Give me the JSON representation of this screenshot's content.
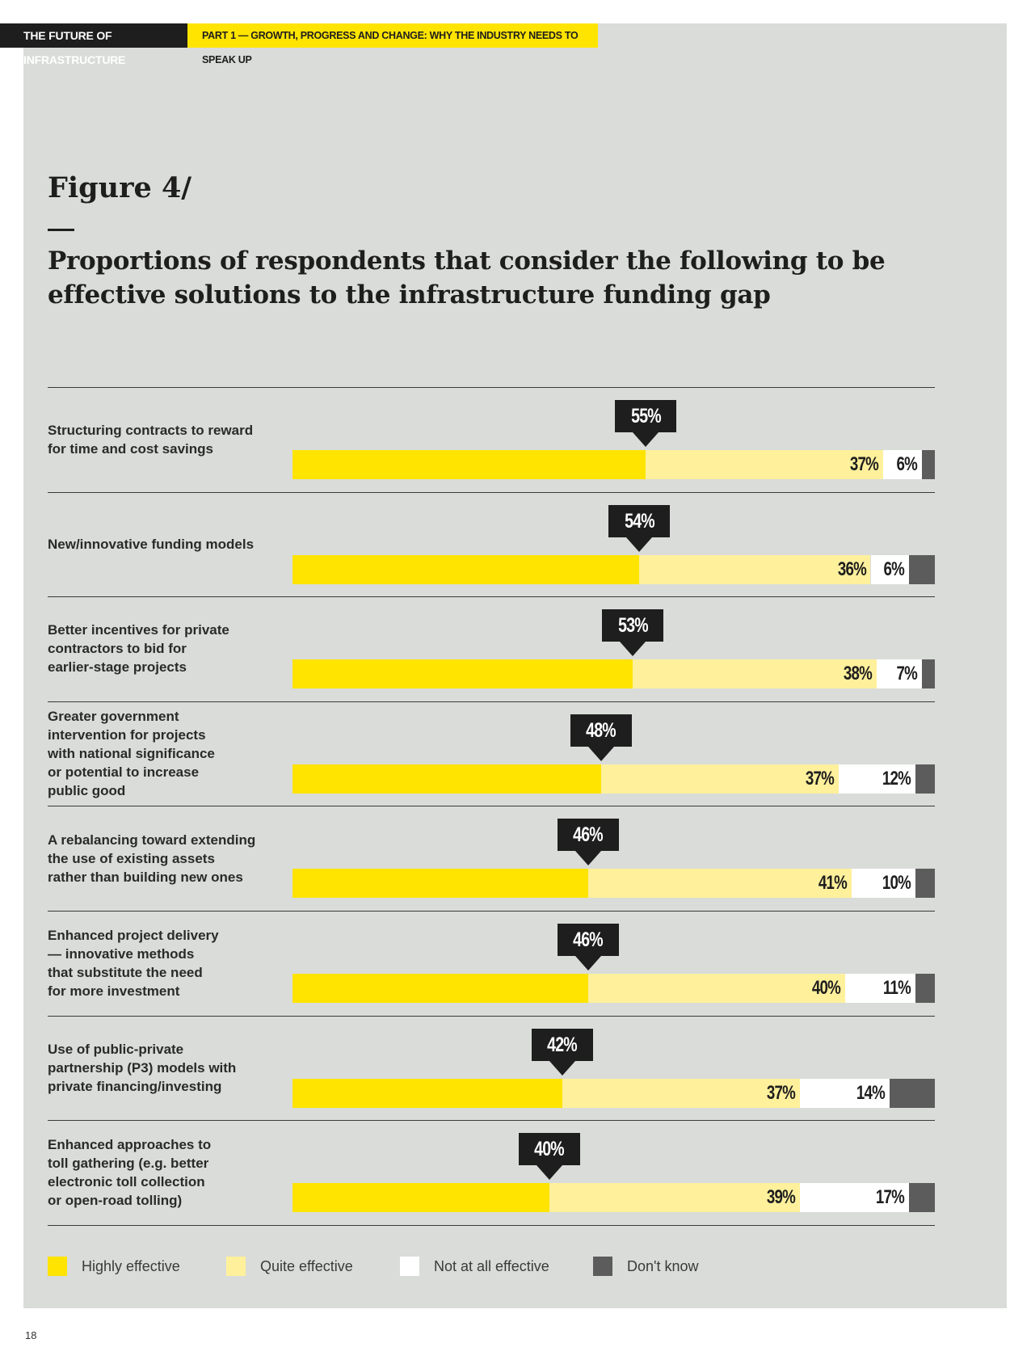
{
  "header": {
    "left": "THE FUTURE OF INFRASTRUCTURE",
    "right": "PART 1 — GROWTH, PROGRESS AND CHANGE: WHY THE INDUSTRY NEEDS TO SPEAK UP"
  },
  "figure": {
    "number": "Figure 4/",
    "title": "Proportions of respondents that consider the following to be effective solutions to the infrastructure funding gap"
  },
  "colors": {
    "highly": "#ffe400",
    "quite": "#fff09c",
    "not": "#ffffff",
    "dont_know": "#5c5c5c"
  },
  "chart_data": {
    "type": "bar",
    "stacked": true,
    "orientation": "horizontal",
    "title": "Proportions of respondents that consider the following to be effective solutions to the infrastructure funding gap",
    "categories": [
      "Structuring contracts to reward for time and cost savings",
      "New/innovative funding models",
      "Better incentives for private contractors to bid for earlier-stage projects",
      "Greater government intervention for projects with national significance or potential to increase public good",
      "A rebalancing toward extending the use of existing assets rather than building new ones",
      "Enhanced project delivery — innovative methods that substitute the need for more investment",
      "Use of public-private partnership (P3) models with private financing/investing",
      "Enhanced approaches to toll gathering (e.g. better electronic toll collection or open-road tolling)"
    ],
    "series": [
      {
        "name": "Highly effective",
        "values": [
          55,
          54,
          53,
          48,
          46,
          46,
          42,
          40
        ]
      },
      {
        "name": "Quite effective",
        "values": [
          37,
          36,
          38,
          37,
          41,
          40,
          37,
          39
        ]
      },
      {
        "name": "Not at all effective",
        "values": [
          6,
          6,
          7,
          12,
          10,
          11,
          14,
          17
        ]
      },
      {
        "name": "Don't know",
        "values": [
          2,
          4,
          2,
          3,
          3,
          3,
          7,
          4
        ]
      }
    ],
    "labels": {
      "highly": [
        "55%",
        "54%",
        "53%",
        "48%",
        "46%",
        "46%",
        "42%",
        "40%"
      ],
      "quite": [
        "37%",
        "36%",
        "38%",
        "37%",
        "41%",
        "40%",
        "37%",
        "39%"
      ],
      "not": [
        "6%",
        "6%",
        "7%",
        "12%",
        "10%",
        "11%",
        "14%",
        "17%"
      ]
    },
    "xlim": [
      0,
      100
    ],
    "legend": [
      "Highly effective",
      "Quite effective",
      "Not at all effective",
      "Don't know"
    ],
    "legend_position": "bottom"
  },
  "rows": [
    {
      "label": [
        "Structuring contracts to reward",
        "for time and cost savings"
      ]
    },
    {
      "label": [
        "New/innovative funding models"
      ]
    },
    {
      "label": [
        "Better incentives for private",
        "contractors to bid for",
        "earlier-stage projects"
      ]
    },
    {
      "label": [
        "Greater government",
        "intervention for projects",
        "with national significance",
        "or potential to increase",
        "public good"
      ]
    },
    {
      "label": [
        "A rebalancing toward extending",
        "the use of existing assets",
        "rather than building new ones"
      ]
    },
    {
      "label": [
        "Enhanced project delivery",
        "— innovative methods",
        "that substitute the need",
        "for more investment"
      ]
    },
    {
      "label": [
        "Use of public-private",
        "partnership (P3) models with",
        "private financing/investing"
      ]
    },
    {
      "label": [
        "Enhanced approaches to",
        "toll gathering (e.g. better",
        "electronic toll collection",
        "or open-road tolling)"
      ]
    }
  ],
  "page_number": "18"
}
